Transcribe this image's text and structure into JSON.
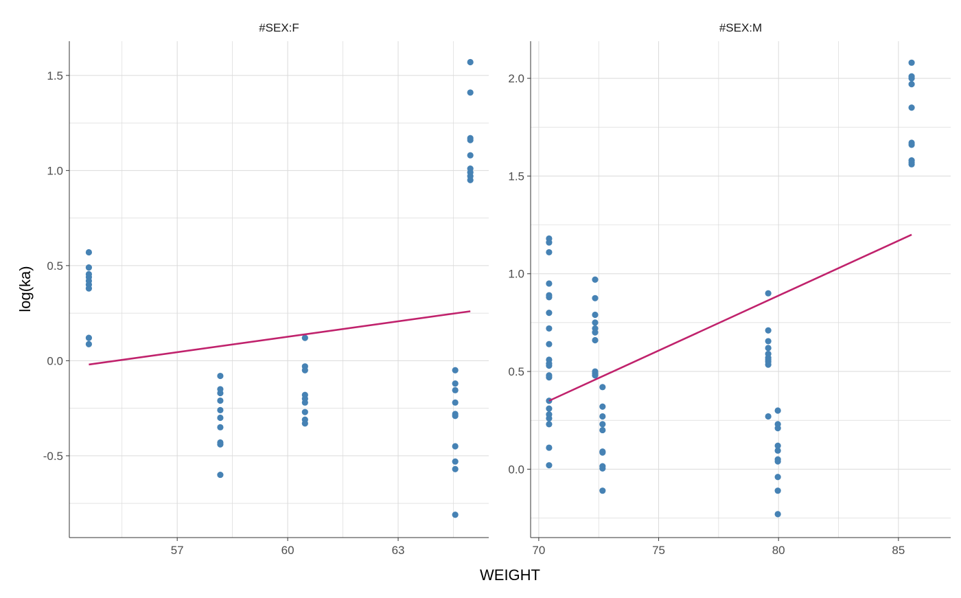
{
  "chart_data": {
    "type": "scatter",
    "xlabel": "WEIGHT",
    "ylabel": "log(ka)",
    "grid": true,
    "colors": {
      "points": "#4682B4",
      "line": "#C0226C",
      "grid": "#DADADA",
      "axis": "#333333"
    },
    "panels": [
      {
        "title": "#SEX:F",
        "xlim": [
          54.07,
          65.46
        ],
        "ylim": [
          -0.93,
          1.68
        ],
        "xticks": [
          57,
          60,
          63
        ],
        "xtick_labels": [
          "57",
          "60",
          "63"
        ],
        "xminor": [
          55.5,
          58.5,
          61.5,
          64.5
        ],
        "yticks": [
          -0.5,
          0.0,
          0.5,
          1.0,
          1.5
        ],
        "ytick_labels": [
          "-0.5",
          "0.0",
          "0.5",
          "1.0",
          "1.5"
        ],
        "yminor": [
          -0.75,
          -0.25,
          0.25,
          0.75,
          1.25
        ],
        "points": [
          {
            "x": 54.6,
            "y": [
              0.57,
              0.49,
              0.455,
              0.44,
              0.42,
              0.4,
              0.38,
              0.12,
              0.087
            ]
          },
          {
            "x": 58.17,
            "y": [
              -0.08,
              -0.15,
              -0.17,
              -0.21,
              -0.26,
              -0.3,
              -0.35,
              -0.43,
              -0.44,
              -0.6
            ]
          },
          {
            "x": 60.47,
            "y": [
              0.12,
              -0.03,
              -0.05,
              -0.18,
              -0.2,
              -0.22,
              -0.27,
              -0.31,
              -0.33
            ]
          },
          {
            "x": 64.55,
            "y": [
              -0.05,
              -0.12,
              -0.155,
              -0.22,
              -0.28,
              -0.29,
              -0.45,
              -0.53,
              -0.57,
              -0.81
            ]
          },
          {
            "x": 64.96,
            "y": [
              1.57,
              1.41,
              1.17,
              1.16,
              1.08,
              1.01,
              0.99,
              0.97,
              0.95
            ]
          }
        ],
        "fit_line": [
          [
            54.6,
            -0.02
          ],
          [
            64.96,
            0.26
          ]
        ]
      },
      {
        "title": "#SEX:M",
        "xlim": [
          69.66,
          87.18
        ],
        "ylim": [
          -0.35,
          2.19
        ],
        "xticks": [
          70,
          75,
          80,
          85
        ],
        "xtick_labels": [
          "70",
          "75",
          "80",
          "85"
        ],
        "xminor": [
          72.5,
          77.5,
          82.5
        ],
        "yticks": [
          0.0,
          0.5,
          1.0,
          1.5,
          2.0
        ],
        "ytick_labels": [
          "0.0",
          "0.5",
          "1.0",
          "1.5",
          "2.0"
        ],
        "yminor": [
          -0.25,
          0.25,
          0.75,
          1.25,
          1.75
        ],
        "points": [
          {
            "x": 70.43,
            "y": [
              1.18,
              1.16,
              1.11,
              0.95,
              0.89,
              0.88,
              0.8,
              0.72,
              0.64,
              0.56,
              0.54,
              0.53,
              0.48,
              0.47,
              0.35,
              0.31,
              0.28,
              0.26,
              0.23,
              0.11,
              0.02
            ]
          },
          {
            "x": 72.35,
            "y": [
              0.97,
              0.875,
              0.79,
              0.75,
              0.72,
              0.7,
              0.66,
              0.5,
              0.49,
              0.48
            ]
          },
          {
            "x": 72.66,
            "y": [
              0.42,
              0.32,
              0.27,
              0.23,
              0.2,
              0.09,
              0.085,
              0.015,
              0.004,
              -0.11
            ]
          },
          {
            "x": 79.57,
            "y": [
              0.9,
              0.71,
              0.655,
              0.62,
              0.59,
              0.57,
              0.56,
              0.55,
              0.535,
              0.27
            ]
          },
          {
            "x": 79.97,
            "y": [
              0.3,
              0.23,
              0.21,
              0.12,
              0.095,
              0.05,
              0.04,
              -0.04,
              -0.11,
              -0.23
            ]
          },
          {
            "x": 85.55,
            "y": [
              2.08,
              2.01,
              2.0,
              1.97,
              1.85,
              1.67,
              1.66,
              1.58,
              1.57,
              1.56
            ]
          }
        ],
        "fit_line": [
          [
            70.43,
            0.35
          ],
          [
            85.55,
            1.2
          ]
        ]
      }
    ]
  }
}
